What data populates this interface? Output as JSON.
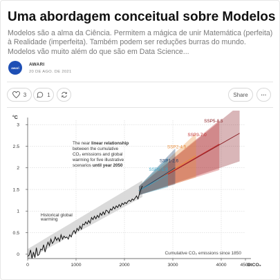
{
  "post": {
    "title": "Uma abordagem conceitual sobre Modelos",
    "subtitle": "Modelos são a alma da Ciência. Permitem a mágica de unir Matemática (perfeita) à Realidade (imperfeita). Também podem ser reduções burras do mundo. Modelos vão muito além do que são em Data Science...",
    "author": "AWARI",
    "avatar_text": "awari",
    "date": "20 DE AGO. DE 2021"
  },
  "actions": {
    "like_count": "3",
    "comment_count": "1",
    "share_label": "Share",
    "more_label": "···",
    "icons": [
      "heart-icon",
      "comment-icon",
      "restack-icon",
      "more-icon"
    ]
  },
  "chart_data": {
    "type": "line",
    "ylabel": "°C",
    "xlabel": "GtCO₂",
    "x_ticks": [
      "0",
      "1000",
      "2000",
      "3000",
      "4000",
      "4500"
    ],
    "y_ticks": [
      "0",
      "0.5",
      "1",
      "1.5",
      "2",
      "2.5",
      "3"
    ],
    "xlim": [
      0,
      4500
    ],
    "ylim": [
      -0.1,
      3.1
    ],
    "x_axis_note": "Cumulative CO₂ emissions since 1850",
    "annotation": {
      "line1": "The near ",
      "line1_bold": "linear relationship",
      "line2": "between the cumulative",
      "line3": "CO₂ emissions and global",
      "line4": "warming for five illustrative",
      "line5": "scenarios ",
      "line5_bold": "until year 2050"
    },
    "historical_label": [
      "Historical global",
      "warming"
    ],
    "historical": {
      "x": [
        0,
        30,
        60,
        90,
        120,
        150,
        180,
        210,
        240,
        270,
        300,
        330,
        360,
        390,
        420,
        450,
        480,
        510,
        540,
        570,
        600,
        630,
        660,
        690,
        720,
        750,
        780,
        810,
        840,
        870,
        900,
        930,
        960,
        990,
        1020,
        1050,
        1080,
        1110,
        1140,
        1170,
        1200,
        1230,
        1260,
        1290,
        1320,
        1350,
        1380,
        1410,
        1440,
        1470,
        1500,
        1530,
        1560,
        1590,
        1620,
        1650,
        1680,
        1710,
        1740,
        1770,
        1800,
        1830,
        1860,
        1890,
        1920,
        1950,
        1980,
        2010,
        2040,
        2070,
        2100,
        2130,
        2160,
        2190,
        2220,
        2250,
        2280,
        2310,
        2340,
        2370
      ],
      "y": [
        -0.05,
        -0.02,
        0.1,
        -0.1,
        0.05,
        -0.08,
        0.15,
        -0.03,
        0.0,
        0.12,
        0.1,
        0.22,
        0.05,
        0.18,
        0.28,
        0.2,
        0.35,
        0.25,
        0.3,
        0.4,
        0.32,
        0.38,
        0.3,
        0.45,
        0.35,
        0.42,
        0.38,
        0.4,
        0.35,
        0.45,
        0.4,
        0.5,
        0.55,
        0.48,
        0.6,
        0.55,
        0.65,
        0.58,
        0.7,
        0.68,
        0.75,
        0.7,
        0.78,
        0.72,
        0.85,
        0.8,
        0.88,
        0.82,
        0.9,
        0.85,
        0.95,
        0.9,
        0.98,
        0.92,
        1.02,
        1.0,
        0.95,
        1.05,
        1.02,
        1.1,
        1.05,
        1.12,
        1.08,
        1.15,
        1.1,
        1.18,
        1.15,
        1.2,
        1.17,
        1.22,
        1.25,
        1.22,
        1.28,
        1.25,
        1.3,
        1.35,
        1.28,
        1.4,
        1.5,
        1.58
      ]
    },
    "series": [
      {
        "name": "SSP1-1.9",
        "color": "#3aa8c8",
        "x_end": 2900,
        "mid_end": 1.85,
        "lo_end": 1.55,
        "hi_end": 2.25,
        "label_at": [
          2700,
          1.93
        ]
      },
      {
        "name": "SSP1-2.6",
        "color": "#1c3a66",
        "x_end": 3050,
        "mid_end": 2.0,
        "lo_end": 1.62,
        "hi_end": 2.45,
        "label_at": [
          2920,
          2.13
        ]
      },
      {
        "name": "SSP2-4.5",
        "color": "#e98b36",
        "x_end": 3480,
        "mid_end": 2.28,
        "lo_end": 1.78,
        "hi_end": 2.8,
        "label_at": [
          3080,
          2.45
        ]
      },
      {
        "name": "SSP3-7.0",
        "color": "#c22c2c",
        "x_end": 3960,
        "mid_end": 2.55,
        "lo_end": 1.95,
        "hi_end": 3.1,
        "label_at": [
          3500,
          2.73
        ]
      },
      {
        "name": "SSP5-8.5",
        "color": "#8a1d22",
        "x_end": 4380,
        "mid_end": 2.8,
        "lo_end": 2.15,
        "hi_end": 3.45,
        "label_at": [
          3840,
          3.05
        ]
      }
    ]
  }
}
